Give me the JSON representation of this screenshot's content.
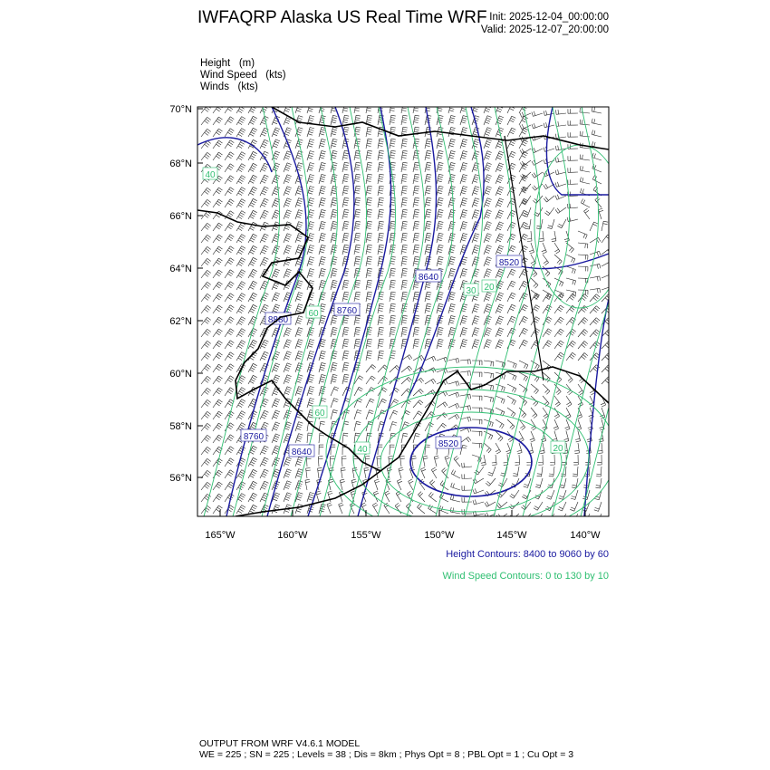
{
  "header": {
    "title": "IWFAQRP Alaska US Real Time WRF",
    "init": "Init: 2025-12-04_00:00:00",
    "valid": "Valid: 2025-12-07_20:00:00"
  },
  "fields": [
    "Height   (m)",
    "Wind Speed   (kts)",
    "Winds   (kts)"
  ],
  "legend": {
    "height_contours": "Height Contours: 8400 to 9060 by 60",
    "wind_contours": "Wind Speed Contours: 0 to 130 by 10",
    "height_color": "#1a1aa0",
    "wind_color": "#2fbf71"
  },
  "footer": {
    "line1": "OUTPUT FROM WRF V4.6.1 MODEL",
    "line2": "WE = 225 ; SN = 225 ; Levels = 38 ; Dis = 8km ; Phys Opt = 8 ; PBL Opt = 1 ; Cu Opt = 3"
  },
  "chart_data": {
    "type": "contour map",
    "lat_ticks": [
      "70°N",
      "68°N",
      "66°N",
      "64°N",
      "62°N",
      "60°N",
      "58°N",
      "56°N"
    ],
    "lon_ticks": [
      "165°W",
      "160°W",
      "155°W",
      "150°W",
      "145°W",
      "140°W"
    ],
    "height_contour_labels": [
      "8880",
      "8760",
      "8640",
      "8520",
      "8520",
      "8760",
      "8640"
    ],
    "wind_contour_labels": [
      "40",
      "30",
      "20",
      "20",
      "60",
      "60",
      "40"
    ]
  }
}
